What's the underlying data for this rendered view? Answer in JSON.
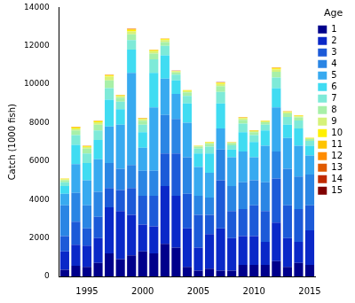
{
  "chart_data": {
    "type": "bar",
    "stacked": true,
    "grid": false,
    "legend": "right",
    "legend_title": "Age",
    "y_label": "Catch (1000 fish)",
    "ylim": [
      0,
      14000
    ],
    "yticks": [
      0,
      2000,
      4000,
      6000,
      8000,
      10000,
      12000,
      14000
    ],
    "categories": [
      null,
      null,
      "1995",
      null,
      null,
      null,
      null,
      "2000",
      null,
      null,
      null,
      null,
      "2005",
      null,
      null,
      null,
      null,
      "2010",
      null,
      null,
      null,
      null,
      "2015"
    ],
    "series": [
      {
        "name": "1",
        "color": "#00008b",
        "values": [
          350,
          550,
          500,
          700,
          1200,
          900,
          1100,
          1300,
          1200,
          1700,
          1500,
          500,
          300,
          400,
          300,
          300,
          600,
          600,
          600,
          800,
          500,
          700,
          600
        ]
      },
      {
        "name": "2",
        "color": "#0a28c8",
        "values": [
          950,
          1100,
          1100,
          1300,
          2400,
          2500,
          2100,
          1400,
          1400,
          3000,
          2700,
          2000,
          1200,
          1800,
          2200,
          1700,
          1500,
          1500,
          1200,
          2000,
          1500,
          1100,
          1800
        ]
      },
      {
        "name": "3",
        "color": "#1c5ad8",
        "values": [
          800,
          1200,
          900,
          1100,
          1000,
          1100,
          1400,
          1500,
          1600,
          1700,
          2200,
          1800,
          1700,
          1000,
          2500,
          1400,
          1400,
          1600,
          1600,
          2300,
          1700,
          1700,
          1300
        ]
      },
      {
        "name": "4",
        "color": "#2a85e4",
        "values": [
          1600,
          1500,
          1200,
          1300,
          1300,
          1100,
          1200,
          1300,
          1300,
          2000,
          1800,
          1900,
          1000,
          900,
          1600,
          1300,
          1400,
          1300,
          1500,
          1400,
          1900,
          1700,
          1600
        ]
      },
      {
        "name": "5",
        "color": "#38aaf0",
        "values": [
          600,
          1500,
          1300,
          1700,
          1900,
          2300,
          4800,
          1200,
          3300,
          1900,
          1300,
          1800,
          1500,
          1300,
          1100,
          1500,
          1600,
          1200,
          1900,
          2300,
          1600,
          1600,
          1000
        ]
      },
      {
        "name": "6",
        "color": "#40dcf2",
        "values": [
          400,
          1000,
          900,
          1000,
          1400,
          800,
          1200,
          800,
          1800,
          1200,
          700,
          1000,
          700,
          1000,
          1300,
          400,
          1000,
          800,
          800,
          1000,
          700,
          900,
          500
        ]
      },
      {
        "name": "7",
        "color": "#7eead8",
        "values": [
          200,
          500,
          500,
          500,
          600,
          400,
          500,
          400,
          700,
          500,
          300,
          400,
          250,
          350,
          600,
          230,
          450,
          350,
          300,
          550,
          400,
          420,
          250
        ]
      },
      {
        "name": "8",
        "color": "#a8f0a8",
        "values": [
          100,
          250,
          250,
          300,
          400,
          200,
          300,
          200,
          300,
          200,
          120,
          180,
          100,
          150,
          300,
          100,
          200,
          150,
          120,
          300,
          180,
          160,
          100
        ]
      },
      {
        "name": "9",
        "color": "#d6f27a",
        "values": [
          50,
          100,
          80,
          120,
          200,
          80,
          150,
          80,
          120,
          100,
          50,
          70,
          40,
          60,
          120,
          40,
          80,
          60,
          50,
          120,
          70,
          60,
          40
        ]
      },
      {
        "name": "10",
        "color": "#fff000",
        "values": [
          30,
          50,
          40,
          50,
          60,
          40,
          80,
          40,
          50,
          50,
          20,
          30,
          15,
          25,
          50,
          15,
          30,
          25,
          20,
          60,
          30,
          30,
          15
        ]
      },
      {
        "name": "11",
        "color": "#ffc400",
        "values": [
          10,
          25,
          15,
          20,
          25,
          20,
          40,
          15,
          20,
          20,
          8,
          12,
          6,
          10,
          20,
          6,
          15,
          10,
          8,
          30,
          12,
          14,
          7
        ]
      },
      {
        "name": "12",
        "color": "#ff8c00",
        "values": [
          5,
          12,
          8,
          8,
          10,
          8,
          15,
          8,
          8,
          8,
          4,
          5,
          3,
          4,
          8,
          3,
          6,
          4,
          4,
          12,
          5,
          6,
          3
        ]
      },
      {
        "name": "13",
        "color": "#e05a00",
        "values": [
          3,
          6,
          4,
          4,
          5,
          4,
          8,
          4,
          4,
          4,
          2,
          2,
          1,
          2,
          4,
          2,
          3,
          2,
          2,
          6,
          2,
          3,
          2
        ]
      },
      {
        "name": "14",
        "color": "#c02a00",
        "values": [
          1,
          3,
          2,
          2,
          2,
          2,
          4,
          2,
          2,
          2,
          1,
          1,
          1,
          1,
          2,
          1,
          1,
          1,
          1,
          2,
          1,
          1,
          1
        ]
      },
      {
        "name": "15",
        "color": "#800000",
        "values": [
          1,
          2,
          1,
          1,
          1,
          1,
          2,
          1,
          1,
          1,
          1,
          1,
          1,
          1,
          1,
          1,
          1,
          1,
          1,
          1,
          1,
          1,
          1
        ]
      }
    ]
  }
}
